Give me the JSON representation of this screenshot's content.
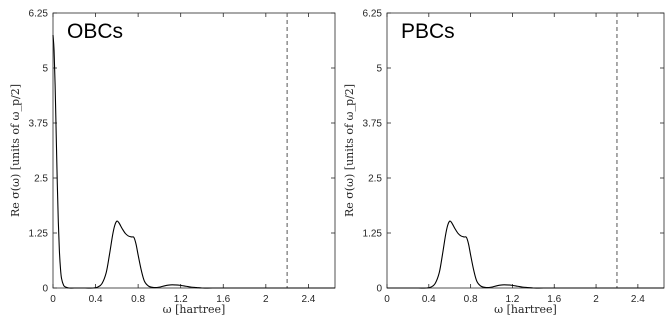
{
  "chart_data": [
    {
      "type": "line",
      "title": "",
      "annotation": "OBCs",
      "xlabel": "ω [hartree]",
      "ylabel": "Re σ(ω) [units of ω_p/2]",
      "xlim": [
        0,
        2.65
      ],
      "ylim": [
        0,
        6.25
      ],
      "xticks": [
        0,
        0.4,
        0.8,
        1.2,
        1.6,
        2,
        2.4
      ],
      "xtick_labels": [
        "0",
        "0.4",
        "0.8",
        "1.2",
        "1.6",
        "2",
        "2.4"
      ],
      "yticks": [
        0,
        1.25,
        2.5,
        3.75,
        5,
        6.25
      ],
      "ytick_labels": [
        "0",
        "1.25",
        "2.5",
        "3.75",
        "5",
        "6.25"
      ],
      "vline": {
        "x": 2.2,
        "style": "dashed"
      },
      "series": [
        {
          "x": [
            0,
            0.01,
            0.02,
            0.03,
            0.04,
            0.05,
            0.06,
            0.07,
            0.08,
            0.1,
            0.12,
            0.15,
            0.2,
            0.3,
            0.38,
            0.42,
            0.46,
            0.5,
            0.53,
            0.56,
            0.58,
            0.6,
            0.62,
            0.65,
            0.68,
            0.71,
            0.74,
            0.76,
            0.78,
            0.8,
            0.83,
            0.86,
            0.9,
            0.95,
            1.0,
            1.05,
            1.1,
            1.15,
            1.2,
            1.25,
            1.3,
            1.35,
            1.4,
            1.5,
            1.7,
            2.0,
            2.4,
            2.65
          ],
          "y": [
            5.75,
            5.4,
            4.6,
            3.5,
            2.4,
            1.5,
            0.85,
            0.45,
            0.22,
            0.06,
            0.02,
            0.0,
            0.0,
            0.0,
            0.0,
            0.02,
            0.1,
            0.35,
            0.75,
            1.2,
            1.42,
            1.52,
            1.48,
            1.35,
            1.24,
            1.18,
            1.16,
            1.15,
            1.0,
            0.75,
            0.4,
            0.15,
            0.04,
            0.01,
            0.02,
            0.05,
            0.07,
            0.07,
            0.06,
            0.04,
            0.02,
            0.01,
            0.0,
            0.0,
            0.0,
            0.0,
            0.0,
            0.0
          ]
        }
      ]
    },
    {
      "type": "line",
      "title": "",
      "annotation": "PBCs",
      "xlabel": "ω [hartree]",
      "ylabel": "Re σ(ω) [units of ω_p/2]",
      "xlim": [
        0,
        2.65
      ],
      "ylim": [
        0,
        6.25
      ],
      "xticks": [
        0,
        0.4,
        0.8,
        1.2,
        1.6,
        2,
        2.4
      ],
      "xtick_labels": [
        "0",
        "0.4",
        "0.8",
        "1.2",
        "1.6",
        "2",
        "2.4"
      ],
      "yticks": [
        0,
        1.25,
        2.5,
        3.75,
        5,
        6.25
      ],
      "ytick_labels": [
        "0",
        "1.25",
        "2.5",
        "3.75",
        "5",
        "6.25"
      ],
      "vline": {
        "x": 2.2,
        "style": "dashed"
      },
      "series": [
        {
          "x": [
            0,
            0.2,
            0.3,
            0.38,
            0.42,
            0.46,
            0.5,
            0.53,
            0.56,
            0.58,
            0.6,
            0.62,
            0.65,
            0.68,
            0.71,
            0.74,
            0.76,
            0.78,
            0.8,
            0.83,
            0.86,
            0.9,
            0.95,
            1.0,
            1.05,
            1.1,
            1.15,
            1.2,
            1.25,
            1.3,
            1.35,
            1.4,
            1.5,
            1.7,
            2.0,
            2.4,
            2.65
          ],
          "y": [
            0.0,
            0.0,
            0.0,
            0.0,
            0.02,
            0.1,
            0.35,
            0.75,
            1.2,
            1.42,
            1.52,
            1.48,
            1.35,
            1.24,
            1.18,
            1.16,
            1.15,
            1.0,
            0.75,
            0.4,
            0.15,
            0.04,
            0.01,
            0.02,
            0.05,
            0.07,
            0.07,
            0.06,
            0.04,
            0.02,
            0.01,
            0.0,
            0.0,
            0.0,
            0.0,
            0.0,
            0.0
          ]
        }
      ]
    }
  ]
}
